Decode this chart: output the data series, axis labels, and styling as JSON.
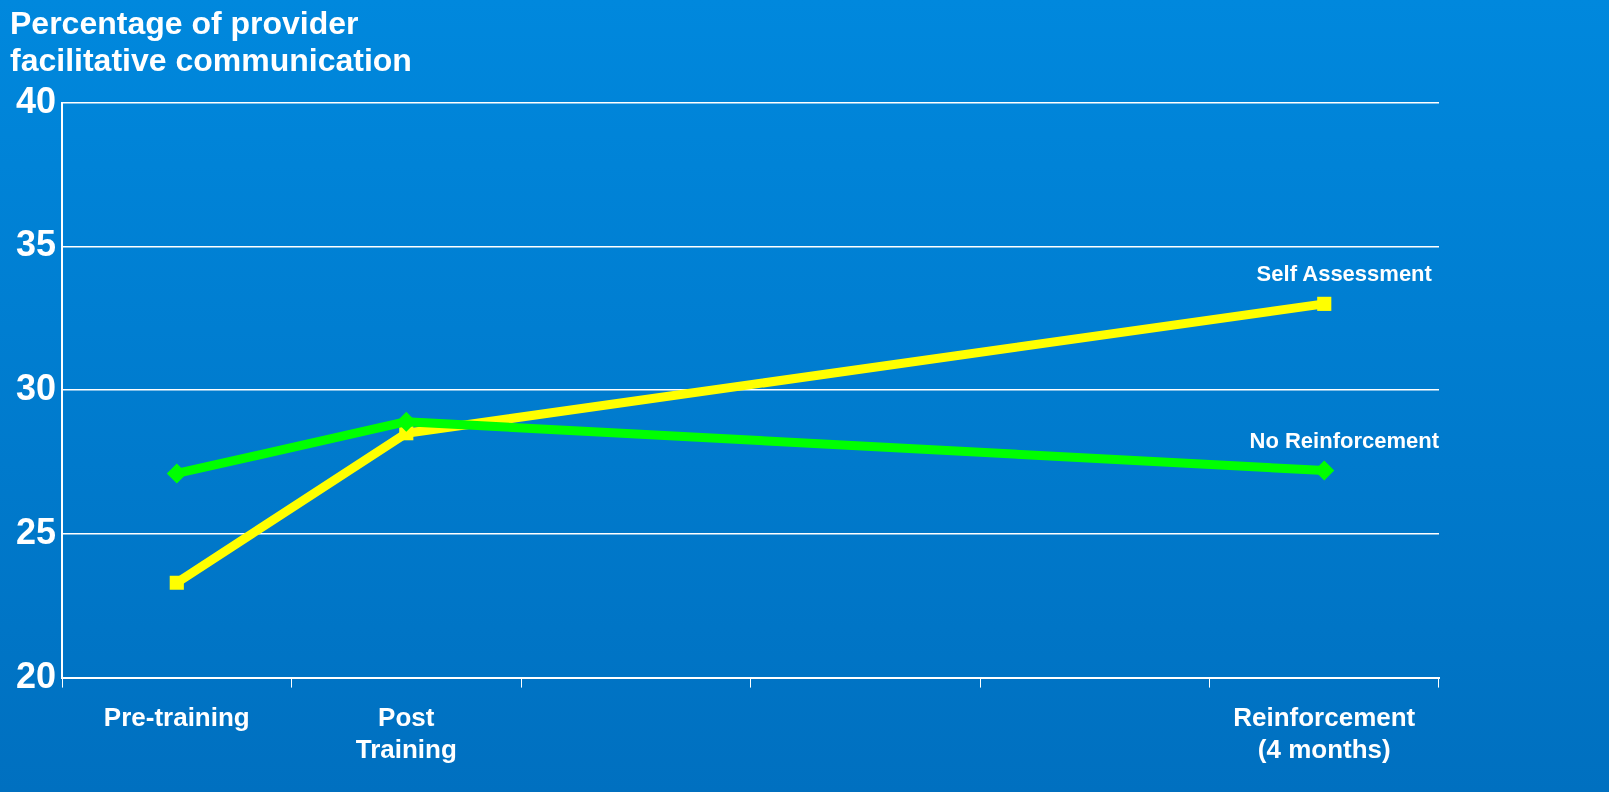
{
  "chart_data": {
    "type": "line",
    "title": "Percentage of provider facilitative communication",
    "categories": [
      "Pre-training",
      "Post Training",
      null,
      null,
      null,
      "Reinforcement (4 months)"
    ],
    "series": [
      {
        "name": "No Reinforcement",
        "color": "#00ff00",
        "marker": "diamond",
        "values": [
          27.1,
          28.9,
          null,
          null,
          null,
          27.2
        ]
      },
      {
        "name": "Self Assessment",
        "color": "#ffff00",
        "marker": "square",
        "values": [
          23.3,
          28.5,
          null,
          null,
          null,
          33.0
        ]
      }
    ],
    "ylim": [
      20,
      40
    ],
    "yticks": [
      20,
      25,
      30,
      35,
      40
    ],
    "grid": "y",
    "legend": false,
    "line_style": "solid"
  }
}
